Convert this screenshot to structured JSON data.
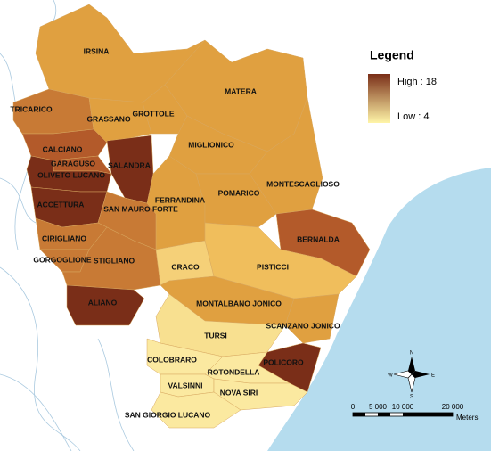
{
  "legend": {
    "title": "Legend",
    "high": "High : 18",
    "low": "Low : 4",
    "high_color": "#7a2e18",
    "low_color": "#fff5a8"
  },
  "municipalities": [
    {
      "name": "IRSINA",
      "color": "#e0a040"
    },
    {
      "name": "MATERA",
      "color": "#e0a040"
    },
    {
      "name": "TRICARICO",
      "color": "#c87a35"
    },
    {
      "name": "GRASSANO",
      "color": "#e0a040"
    },
    {
      "name": "GROTTOLE",
      "color": "#e0a040"
    },
    {
      "name": "MIGLIONICO",
      "color": "#e0a040"
    },
    {
      "name": "MONTESCAGLIOSO",
      "color": "#e0a040"
    },
    {
      "name": "CALCIANO",
      "color": "#b35a2a"
    },
    {
      "name": "SALANDRA",
      "color": "#7a2e18"
    },
    {
      "name": "GARAGUSO",
      "color": "#b35a2a"
    },
    {
      "name": "OLIVETO LUCANO",
      "color": "#7a2e18"
    },
    {
      "name": "ACCETTURA",
      "color": "#7a2e18"
    },
    {
      "name": "FERRANDINA",
      "color": "#e0a040"
    },
    {
      "name": "POMARICO",
      "color": "#e0a040"
    },
    {
      "name": "SAN MAURO FORTE",
      "color": "#c87a35"
    },
    {
      "name": "BERNALDA",
      "color": "#b35a2a"
    },
    {
      "name": "CIRIGLIANO",
      "color": "#c87a35"
    },
    {
      "name": "GORGOGLIONE",
      "color": "#c87a35"
    },
    {
      "name": "STIGLIANO",
      "color": "#c87a35"
    },
    {
      "name": "CRACO",
      "color": "#f5d078"
    },
    {
      "name": "PISTICCI",
      "color": "#f0be5c"
    },
    {
      "name": "MONTALBANO JONICO",
      "color": "#e0a040"
    },
    {
      "name": "ALIANO",
      "color": "#7a2e18"
    },
    {
      "name": "SCANZANO JONICO",
      "color": "#e0a040"
    },
    {
      "name": "TURSI",
      "color": "#f8e090"
    },
    {
      "name": "POLICORO",
      "color": "#7a2e18"
    },
    {
      "name": "COLOBRARO",
      "color": "#fbe9a0"
    },
    {
      "name": "ROTONDELLA",
      "color": "#fbe9a0"
    },
    {
      "name": "VALSINNI",
      "color": "#fbe9a0"
    },
    {
      "name": "NOVA SIRI",
      "color": "#fbe9a0"
    },
    {
      "name": "SAN GIORGIO LUCANO",
      "color": "#fbe9a0"
    }
  ],
  "scale_bar": {
    "labels": [
      "0",
      "5 000",
      "10 000",
      "20 000"
    ],
    "unit": "Meters"
  },
  "compass": {
    "n": "N",
    "e": "E",
    "s": "S",
    "w": "W"
  }
}
